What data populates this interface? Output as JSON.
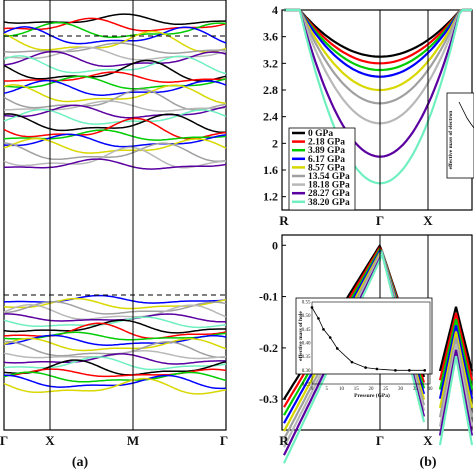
{
  "colors": {
    "p0": "#000000",
    "p1": "#ff0000",
    "p2": "#00cc00",
    "p3": "#0000ff",
    "p4": "#d8d800",
    "p5": "#a0a0a0",
    "p6": "#b8b8b8",
    "p7": "#5a00a0",
    "p8": "#70f0c0"
  },
  "panel_labels": {
    "a": "(a)",
    "b": "(b)"
  },
  "chart_data": [
    {
      "id": "a",
      "type": "line",
      "title": "",
      "xlabel": "",
      "ylabel": "",
      "xticks": [
        "Γ",
        "X",
        "M",
        "Γ"
      ],
      "x_positions": [
        0,
        1,
        2,
        3
      ],
      "fermi_level_dashed": true,
      "series_note_values_in_plot_fraction": true
    },
    {
      "id": "b-top",
      "type": "line",
      "title": "",
      "xticks": [
        "R",
        "Γ",
        "X"
      ],
      "yticks": [
        "1.2",
        "1.6",
        "2",
        "2.4",
        "2.8",
        "3.2",
        "3.6",
        "4"
      ],
      "ylim": [
        1.0,
        4.0
      ],
      "legend": [
        "0 GPa",
        "2.18 GPa",
        "3.89 GPa",
        "6.17 GPa",
        "8.57 GPa",
        "13.54 GPa",
        "18.18 GPa",
        "28.27 GPa",
        "38.20 GPa"
      ],
      "legend_position": "left",
      "gamma_minimum_by_pressure": [
        3.3,
        3.2,
        3.1,
        3.0,
        2.8,
        2.6,
        2.3,
        1.8,
        1.4
      ],
      "inset": {
        "ylabel": "effective mass of electron"
      }
    },
    {
      "id": "b-bottom",
      "type": "line",
      "title": "",
      "xticks": [
        "R",
        "Γ",
        "X"
      ],
      "yticks": [
        "0",
        "-0.1",
        "-0.2",
        "-0.3"
      ],
      "ylim": [
        -0.36,
        0.02
      ],
      "inset": {
        "type": "line",
        "xlabel": "Pressure (GPa)",
        "ylabel": "effective mass of hole",
        "xticks": [
          "0",
          "5",
          "10",
          "15",
          "20",
          "25",
          "30",
          "35",
          "40"
        ],
        "yticks": [
          "0.25",
          "0.30",
          "0.35",
          "0.40",
          "0.45",
          "0.50",
          "0.55"
        ],
        "xlim": [
          0,
          40
        ],
        "ylim": [
          0.25,
          0.55
        ],
        "x": [
          0,
          2.18,
          3.89,
          6.17,
          8.57,
          13.54,
          18.18,
          22,
          28.27,
          33,
          38.2
        ],
        "y": [
          0.53,
          0.49,
          0.45,
          0.42,
          0.38,
          0.33,
          0.31,
          0.305,
          0.3,
          0.3,
          0.3
        ]
      }
    }
  ]
}
